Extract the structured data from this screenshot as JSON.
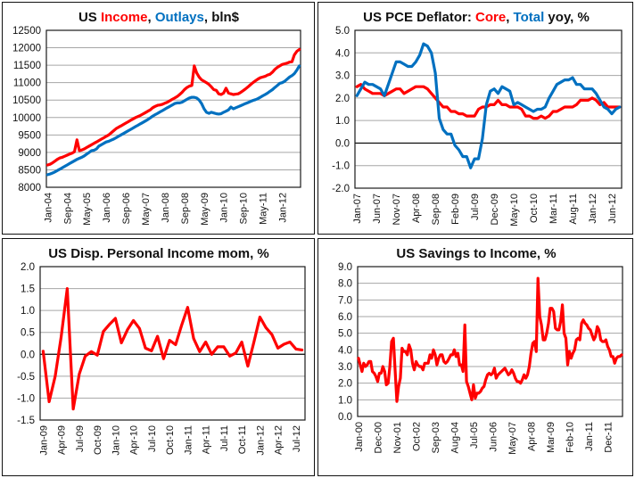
{
  "colors": {
    "red": "#ff0000",
    "blue": "#0070c0",
    "text": "#111111",
    "grid": "#a6a6a6"
  },
  "chart_data": [
    {
      "id": "income-outlays",
      "type": "line",
      "title_parts": [
        {
          "text": "US ",
          "color": "text"
        },
        {
          "text": "Income",
          "color": "red"
        },
        {
          "text": ", ",
          "color": "text"
        },
        {
          "text": "Outlays",
          "color": "blue"
        },
        {
          "text": ", bln$",
          "color": "text"
        }
      ],
      "title": "US Income, Outlays, bln$",
      "xlabel": "",
      "ylabel": "",
      "ylim": [
        8000,
        12500
      ],
      "yticks": [
        8000,
        8500,
        9000,
        9500,
        10000,
        10500,
        11000,
        11500,
        12000,
        12500
      ],
      "ytick_labels": [
        "8000",
        "8500",
        "9000",
        "9500",
        "10000",
        "10500",
        "11000",
        "11500",
        "12000",
        "12500"
      ],
      "zero_line": null,
      "grid": true,
      "n_points": 104,
      "xtick_labels": [
        "Jan-04",
        "Sep-04",
        "May-05",
        "Jan-06",
        "Sep-06",
        "May-07",
        "Jan-08",
        "Sep-08",
        "May-09",
        "Jan-10",
        "Sep-10",
        "May-11",
        "Jan-12"
      ],
      "xtick_every": 8,
      "series": [
        {
          "name": "Income",
          "color": "red",
          "values": [
            8640,
            8660,
            8700,
            8750,
            8800,
            8840,
            8860,
            8890,
            8920,
            8950,
            8980,
            9020,
            9360,
            9050,
            9070,
            9100,
            9140,
            9180,
            9220,
            9260,
            9300,
            9340,
            9380,
            9420,
            9460,
            9500,
            9560,
            9620,
            9680,
            9720,
            9760,
            9800,
            9840,
            9880,
            9920,
            9960,
            10000,
            10030,
            10060,
            10100,
            10140,
            10180,
            10220,
            10280,
            10320,
            10350,
            10360,
            10380,
            10410,
            10440,
            10480,
            10520,
            10560,
            10600,
            10660,
            10720,
            10800,
            10860,
            10900,
            10920,
            11480,
            11280,
            11160,
            11080,
            11040,
            11000,
            10950,
            10880,
            10800,
            10780,
            10680,
            10660,
            10700,
            10840,
            10700,
            10680,
            10660,
            10670,
            10680,
            10720,
            10770,
            10820,
            10880,
            10940,
            11000,
            11050,
            11100,
            11140,
            11160,
            11180,
            11220,
            11240,
            11300,
            11380,
            11440,
            11480,
            11520,
            11540,
            11560,
            11590,
            11600,
            11800,
            11900,
            11950
          ]
        },
        {
          "name": "Outlays",
          "color": "blue",
          "values": [
            8360,
            8380,
            8410,
            8440,
            8480,
            8520,
            8560,
            8600,
            8640,
            8680,
            8720,
            8760,
            8800,
            8830,
            8860,
            8900,
            8950,
            9000,
            9050,
            9060,
            9100,
            9180,
            9220,
            9260,
            9300,
            9320,
            9350,
            9380,
            9420,
            9460,
            9500,
            9540,
            9580,
            9620,
            9660,
            9700,
            9740,
            9780,
            9820,
            9860,
            9900,
            9940,
            9990,
            10040,
            10080,
            10120,
            10160,
            10200,
            10240,
            10280,
            10320,
            10360,
            10400,
            10420,
            10420,
            10440,
            10480,
            10520,
            10560,
            10580,
            10580,
            10560,
            10500,
            10400,
            10250,
            10150,
            10120,
            10150,
            10130,
            10110,
            10100,
            10110,
            10150,
            10180,
            10220,
            10300,
            10250,
            10280,
            10310,
            10340,
            10370,
            10400,
            10430,
            10460,
            10490,
            10510,
            10540,
            10580,
            10620,
            10660,
            10700,
            10750,
            10800,
            10860,
            10920,
            10980,
            11000,
            11040,
            11100,
            11160,
            11200,
            11260,
            11360,
            11480
          ]
        }
      ]
    },
    {
      "id": "pce-deflator",
      "type": "line",
      "title_parts": [
        {
          "text": "US PCE Deflator: ",
          "color": "text"
        },
        {
          "text": "Core",
          "color": "red"
        },
        {
          "text": ", ",
          "color": "text"
        },
        {
          "text": "Total",
          "color": "blue"
        },
        {
          "text": " yoy, %",
          "color": "text"
        }
      ],
      "title": "US PCE Deflator: Core, Total yoy, %",
      "xlabel": "",
      "ylabel": "",
      "ylim": [
        -2.0,
        5.0
      ],
      "yticks": [
        -2,
        -1,
        0,
        1,
        2,
        3,
        4,
        5
      ],
      "ytick_labels": [
        "-2.0",
        "-1.0",
        "0.0",
        "1.0",
        "2.0",
        "3.0",
        "4.0",
        "5.0"
      ],
      "zero_line": 0,
      "grid": true,
      "n_points": 68,
      "xtick_labels": [
        "Jan-07",
        "Jun-07",
        "Nov-07",
        "Apr-08",
        "Sep-08",
        "Feb-09",
        "Jul-09",
        "Dec-09",
        "May-10",
        "Oct-10",
        "Mar-11",
        "Aug-11",
        "Jan-12",
        "Jun-12"
      ],
      "xtick_every": 5,
      "series": [
        {
          "name": "Core",
          "color": "red",
          "values": [
            2.5,
            2.6,
            2.4,
            2.3,
            2.2,
            2.2,
            2.2,
            2.1,
            2.2,
            2.3,
            2.4,
            2.4,
            2.2,
            2.3,
            2.4,
            2.5,
            2.5,
            2.5,
            2.4,
            2.2,
            2.0,
            1.8,
            1.6,
            1.6,
            1.4,
            1.4,
            1.3,
            1.3,
            1.2,
            1.2,
            1.2,
            1.5,
            1.6,
            1.6,
            1.7,
            1.7,
            1.9,
            1.7,
            1.7,
            1.6,
            1.6,
            1.6,
            1.5,
            1.2,
            1.2,
            1.1,
            1.1,
            1.2,
            1.1,
            1.2,
            1.4,
            1.4,
            1.5,
            1.6,
            1.6,
            1.6,
            1.7,
            1.9,
            1.9,
            1.9,
            2.0,
            1.9,
            1.7,
            1.8,
            1.6,
            1.6,
            1.6,
            1.6
          ]
        },
        {
          "name": "Total",
          "color": "blue",
          "values": [
            2.1,
            2.4,
            2.7,
            2.6,
            2.6,
            2.5,
            2.4,
            2.1,
            2.6,
            3.1,
            3.6,
            3.6,
            3.5,
            3.4,
            3.4,
            3.6,
            3.9,
            4.4,
            4.3,
            4.0,
            3.1,
            1.1,
            0.6,
            0.4,
            0.4,
            -0.1,
            -0.3,
            -0.6,
            -0.6,
            -1.1,
            -0.7,
            -0.7,
            0.2,
            1.7,
            2.3,
            2.4,
            2.2,
            2.5,
            2.4,
            2.3,
            1.7,
            1.8,
            1.7,
            1.6,
            1.5,
            1.4,
            1.5,
            1.5,
            1.6,
            2.0,
            2.3,
            2.6,
            2.7,
            2.8,
            2.8,
            2.9,
            2.6,
            2.6,
            2.4,
            2.4,
            2.4,
            2.2,
            1.9,
            1.6,
            1.5,
            1.3,
            1.5,
            1.6
          ]
        }
      ]
    },
    {
      "id": "disp-income-mom",
      "type": "line",
      "title": "US Disp. Personal Income mom, %",
      "title_parts": [
        {
          "text": "US Disp. Personal Income mom, %",
          "color": "text"
        }
      ],
      "xlabel": "",
      "ylabel": "",
      "ylim": [
        -1.5,
        2.0
      ],
      "yticks": [
        -1.5,
        -1.0,
        -0.5,
        0.0,
        0.5,
        1.0,
        1.5,
        2.0
      ],
      "ytick_labels": [
        "-1.5",
        "-1.0",
        "-0.5",
        "0.0",
        "0.5",
        "1.0",
        "1.5",
        "2.0"
      ],
      "zero_line": 0,
      "grid": true,
      "n_points": 44,
      "xtick_labels": [
        "Jan-09",
        "Apr-09",
        "Jul-09",
        "Oct-09",
        "Jan-10",
        "Apr-10",
        "Jul-10",
        "Oct-10",
        "Jan-11",
        "Apr-11",
        "Jul-11",
        "Oct-11",
        "Jan-12",
        "Apr-12",
        "Jul-12"
      ],
      "xtick_every": 3,
      "series": [
        {
          "name": "Disposable Personal Income mom",
          "color": "red",
          "values": [
            0.07,
            -1.08,
            -0.5,
            0.4,
            1.5,
            -1.25,
            -0.45,
            -0.04,
            0.06,
            -0.02,
            0.52,
            0.68,
            0.82,
            0.26,
            0.56,
            0.77,
            0.59,
            0.14,
            0.08,
            0.41,
            -0.1,
            0.32,
            0.22,
            0.66,
            1.07,
            0.36,
            0.06,
            0.28,
            0.0,
            0.17,
            0.17,
            -0.04,
            0.03,
            0.28,
            -0.27,
            0.27,
            0.85,
            0.61,
            0.45,
            0.14,
            0.23,
            0.28,
            0.12,
            0.1
          ]
        }
      ]
    },
    {
      "id": "savings-to-income",
      "type": "line",
      "title": "US Savings to Income, %",
      "title_parts": [
        {
          "text": "US Savings to Income, %",
          "color": "text"
        }
      ],
      "xlabel": "",
      "ylabel": "",
      "ylim": [
        0.0,
        9.0
      ],
      "yticks": [
        0,
        1,
        2,
        3,
        4,
        5,
        6,
        7,
        8,
        9
      ],
      "ytick_labels": [
        "0.0",
        "1.0",
        "2.0",
        "3.0",
        "4.0",
        "5.0",
        "6.0",
        "7.0",
        "8.0",
        "9.0"
      ],
      "zero_line": null,
      "grid": true,
      "n_points": 152,
      "xtick_labels": [
        "Jan-00",
        "Dec-00",
        "Nov-01",
        "Oct-02",
        "Sep-03",
        "Aug-04",
        "Jul-05",
        "Jun-06",
        "May-07",
        "Apr-08",
        "Mar-09",
        "Feb-10",
        "Jan-11",
        "Dec-11"
      ],
      "xtick_every": 11,
      "series": [
        {
          "name": "Savings to Income",
          "color": "red",
          "values": [
            3.5,
            3.1,
            2.7,
            3.2,
            3.0,
            3.1,
            3.3,
            3.3,
            2.7,
            2.6,
            2.4,
            2.1,
            2.6,
            2.6,
            3.0,
            2.7,
            1.9,
            2.0,
            3.0,
            4.5,
            4.7,
            2.8,
            0.9,
            1.8,
            2.3,
            4.1,
            3.9,
            3.9,
            3.7,
            4.3,
            4.0,
            3.2,
            2.8,
            3.3,
            3.1,
            3.0,
            3.0,
            2.8,
            3.2,
            3.2,
            3.2,
            3.7,
            3.5,
            4.0,
            3.7,
            3.1,
            3.5,
            3.7,
            3.7,
            3.3,
            3.2,
            3.3,
            3.5,
            3.7,
            3.7,
            4.0,
            3.6,
            3.8,
            3.1,
            3.1,
            2.7,
            5.5,
            2.1,
            1.8,
            1.4,
            1.0,
            1.9,
            1.1,
            1.4,
            1.4,
            1.5,
            1.7,
            1.8,
            2.2,
            2.5,
            2.6,
            2.5,
            2.6,
            2.9,
            2.3,
            2.5,
            2.6,
            2.7,
            2.8,
            2.9,
            2.7,
            2.5,
            2.6,
            2.8,
            2.6,
            2.3,
            2.1,
            2.1,
            2.0,
            2.2,
            2.5,
            2.3,
            2.5,
            3.0,
            3.8,
            4.4,
            4.5,
            3.9,
            8.3,
            6.0,
            5.5,
            4.6,
            4.6,
            5.0,
            5.6,
            6.5,
            6.5,
            6.3,
            5.3,
            5.2,
            5.2,
            5.7,
            6.7,
            5.0,
            4.7,
            3.1,
            3.9,
            3.5,
            3.8,
            4.0,
            4.6,
            4.7,
            4.6,
            5.6,
            5.8,
            5.6,
            5.5,
            5.3,
            5.2,
            4.9,
            4.6,
            4.8,
            5.4,
            5.2,
            4.6,
            4.5,
            4.5,
            4.6,
            4.2,
            4.0,
            3.6,
            3.6,
            3.2,
            3.5,
            3.6,
            3.6,
            3.7
          ]
        }
      ]
    }
  ]
}
